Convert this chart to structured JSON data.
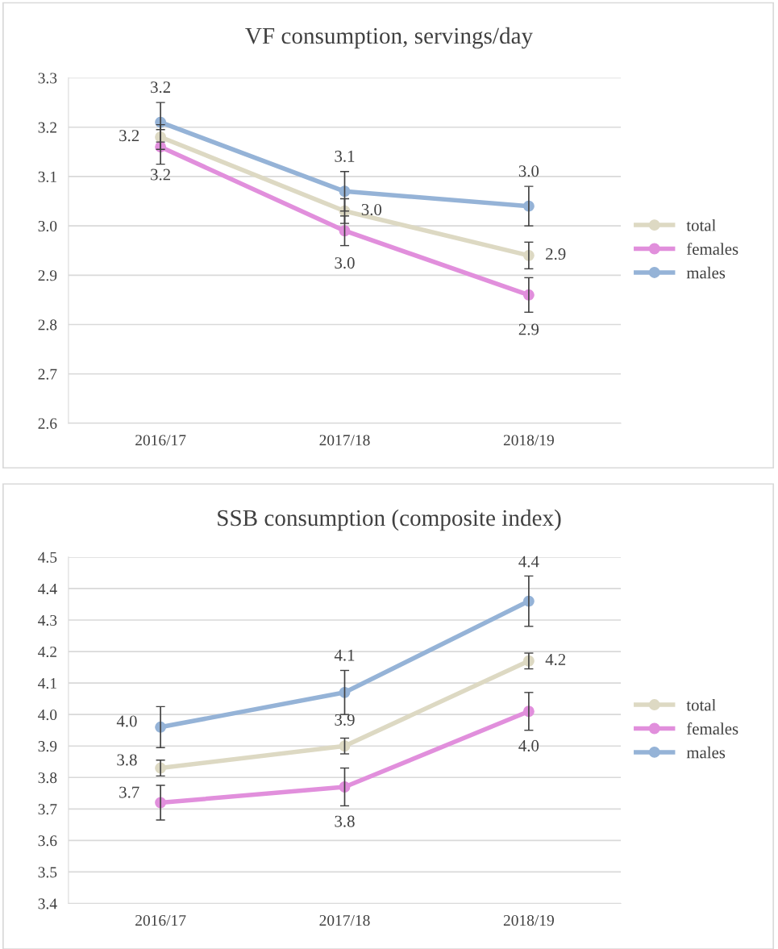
{
  "chart_data": [
    {
      "type": "line",
      "title": "VF consumption, servings/day",
      "categories": [
        "2016/17",
        "2017/18",
        "2018/19"
      ],
      "series": [
        {
          "name": "total",
          "color": "#ddd9c3",
          "values": [
            3.18,
            3.03,
            2.94
          ],
          "errors": [
            0.025,
            0.025,
            0.027
          ],
          "value_labels": [
            "3.2",
            "3.0",
            "2.9"
          ]
        },
        {
          "name": "females",
          "color": "#e18fdc",
          "values": [
            3.16,
            2.99,
            2.86
          ],
          "errors": [
            0.035,
            0.03,
            0.035
          ],
          "value_labels": [
            "3.2",
            "3.0",
            "2.9"
          ]
        },
        {
          "name": "males",
          "color": "#95b3d7",
          "values": [
            3.21,
            3.07,
            3.04
          ],
          "errors": [
            0.04,
            0.04,
            0.04
          ],
          "value_labels": [
            "3.2",
            "3.1",
            "3.0"
          ]
        }
      ],
      "ylim": [
        2.6,
        3.3
      ],
      "yticks": [
        2.6,
        2.7,
        2.8,
        2.9,
        {
          "value": 3,
          "label": "3.0"
        },
        3.1,
        3.2,
        3.3
      ],
      "grid": "y",
      "legend": "right",
      "marker": "circle",
      "line_style": "solid"
    },
    {
      "type": "line",
      "title": "SSB consumption (composite index)",
      "categories": [
        "2016/17",
        "2017/18",
        "2018/19"
      ],
      "series": [
        {
          "name": "total",
          "color": "#ddd9c3",
          "values": [
            3.83,
            3.9,
            4.17
          ],
          "errors": [
            0.025,
            0.025,
            0.025
          ],
          "value_labels": [
            "3.8",
            "3.9",
            "4.2"
          ]
        },
        {
          "name": "females",
          "color": "#e18fdc",
          "values": [
            3.72,
            3.77,
            4.01
          ],
          "errors": [
            0.055,
            0.06,
            0.06
          ],
          "value_labels": [
            "3.7",
            "3.8",
            "4.0"
          ]
        },
        {
          "name": "males",
          "color": "#95b3d7",
          "values": [
            3.96,
            4.07,
            4.36
          ],
          "errors": [
            0.065,
            0.07,
            0.08
          ],
          "value_labels": [
            "4.0",
            "4.1",
            "4.4"
          ]
        }
      ],
      "ylim": [
        3.4,
        4.5
      ],
      "yticks": [
        3.4,
        3.5,
        3.6,
        3.7,
        3.8,
        3.9,
        {
          "value": 4,
          "label": "4.0"
        },
        4.1,
        4.2,
        4.3,
        4.4,
        4.5
      ],
      "grid": "y",
      "legend": "right",
      "marker": "circle",
      "line_style": "solid"
    }
  ]
}
